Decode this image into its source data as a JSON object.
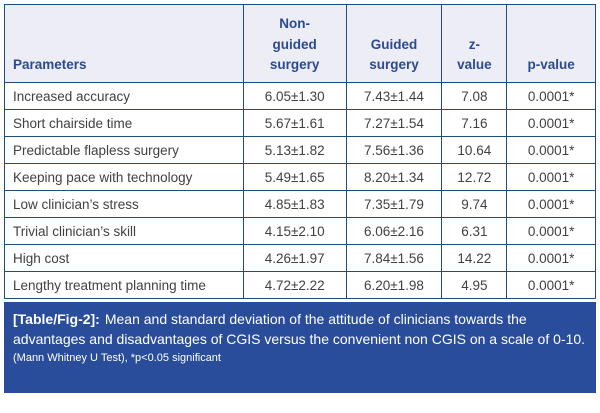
{
  "colors": {
    "header_bg": "#ecedf5",
    "header_text": "#2c4a8f",
    "grid_border": "#1e4d7c",
    "body_text": "#414141",
    "caption_bg": "#2a4d9b",
    "caption_text": "#ffffff"
  },
  "table": {
    "headers": [
      "Parameters",
      "Non-\nguided\nsurgery",
      "Guided\nsurgery",
      "z-\nvalue",
      "p-value"
    ],
    "rows": [
      [
        "Increased accuracy",
        "6.05±1.30",
        "7.43±1.44",
        "7.08",
        "0.0001*"
      ],
      [
        "Short chairside time",
        "5.67±1.61",
        "7.27±1.54",
        "7.16",
        "0.0001*"
      ],
      [
        "Predictable flapless surgery",
        "5.13±1.82",
        "7.56±1.36",
        "10.64",
        "0.0001*"
      ],
      [
        "Keeping pace with technology",
        "5.49±1.65",
        "8.20±1.34",
        "12.72",
        "0.0001*"
      ],
      [
        "Low clinician’s stress",
        "4.85±1.83",
        "7.35±1.79",
        "9.74",
        "0.0001*"
      ],
      [
        "Trivial clinician’s skill",
        "4.15±2.10",
        "6.06±2.16",
        "6.31",
        "0.0001*"
      ],
      [
        "High cost",
        "4.26±1.97",
        "7.84±1.56",
        "14.22",
        "0.0001*"
      ],
      [
        "Lengthy treatment planning time",
        "4.72±2.22",
        "6.20±1.98",
        "4.95",
        "0.0001*"
      ]
    ]
  },
  "caption": {
    "label": "[Table/Fig-2]:",
    "text": "Mean and standard deviation of the attitude of clinicians towards the advantages and disadvantages of CGIS versus the convenient non CGIS on a scale of 0-10.",
    "note": "(Mann Whitney U Test), *p<0.05 significant"
  }
}
